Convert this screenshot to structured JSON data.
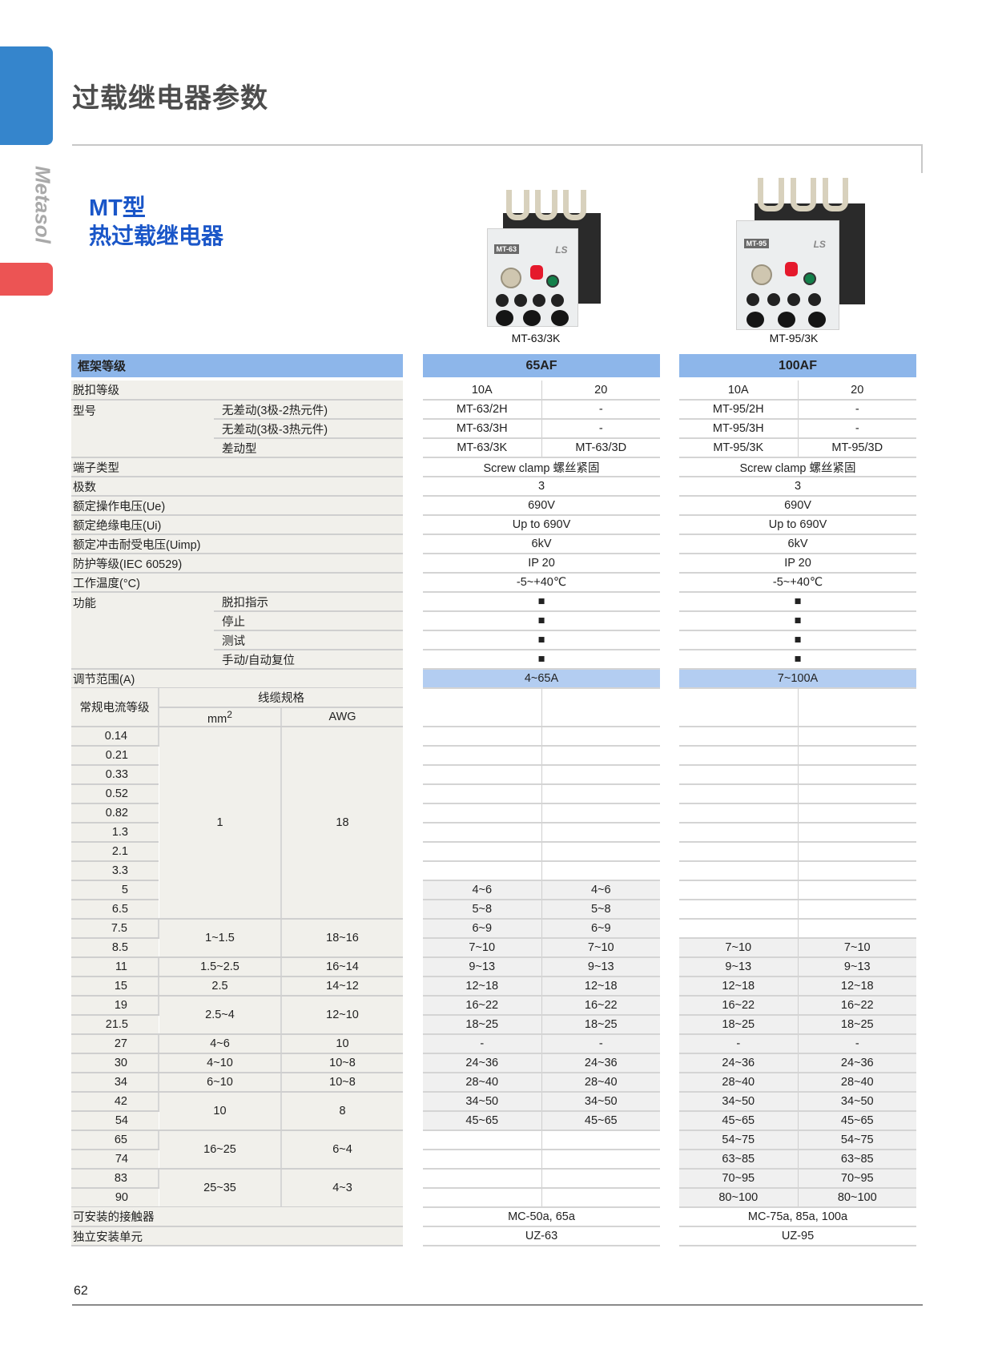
{
  "page": {
    "side_label": "Metasol",
    "title": "过载继电器参数",
    "product_type": "MT型",
    "product_name": "热过载继电器",
    "page_number": "62"
  },
  "colors": {
    "tab_blue": "#3585cc",
    "tab_red": "#ec5454",
    "header_blue": "#8db6ea",
    "range_blue": "#b3cdf1",
    "heading_blue": "#1a56c8"
  },
  "products": [
    {
      "badge": "MT-63",
      "logo": "LS",
      "caption": "MT-63/3K"
    },
    {
      "badge": "MT-95",
      "logo": "LS",
      "caption": "MT-95/3K"
    }
  ],
  "spec": {
    "header": "框架等级",
    "trip_class": "脱扣等级",
    "model": "型号",
    "model_subs": [
      "无差动(3极-2热元件)",
      "无差动(3极-3热元件)",
      "差动型"
    ],
    "terminal": "端子类型",
    "poles": "极数",
    "ue": "额定操作电压(Ue)",
    "ui": "额定绝缘电压(Ui)",
    "uimp": "额定冲击耐受电压(Uimp)",
    "ip": "防护等级(IEC 60529)",
    "temp": "工作温度(°C)",
    "function": "功能",
    "function_subs": [
      "脱扣指示",
      "停止",
      "测试",
      "手动/自动复位"
    ],
    "range": "调节范围(A)"
  },
  "cable": {
    "current_header": "常规电流等级",
    "cable_header": "线缆规格",
    "mm2_label": "mm",
    "mm2_sup": "2",
    "awg_label": "AWG",
    "currents": [
      "0.14",
      "0.21",
      "0.33",
      "0.52",
      "0.82",
      "1.3",
      "2.1",
      "3.3",
      "5",
      "6.5",
      "7.5",
      "8.5",
      "11",
      "15",
      "19",
      "21.5",
      "27",
      "30",
      "34",
      "42",
      "54",
      "65",
      "74",
      "83",
      "90"
    ],
    "mm2": [
      {
        "value": "1",
        "span": 10
      },
      {
        "value": "1~1.5",
        "span": 2
      },
      {
        "value": "1.5~2.5",
        "span": 1
      },
      {
        "value": "2.5",
        "span": 1
      },
      {
        "value": "2.5~4",
        "span": 2
      },
      {
        "value": "4~6",
        "span": 1
      },
      {
        "value": "4~10",
        "span": 1
      },
      {
        "value": "6~10",
        "span": 1
      },
      {
        "value": "10",
        "span": 2
      },
      {
        "value": "16~25",
        "span": 2
      },
      {
        "value": "25~35",
        "span": 2
      }
    ],
    "awg": [
      {
        "value": "18",
        "span": 10
      },
      {
        "value": "18~16",
        "span": 2
      },
      {
        "value": "16~14",
        "span": 1
      },
      {
        "value": "14~12",
        "span": 1
      },
      {
        "value": "12~10",
        "span": 2
      },
      {
        "value": "10",
        "span": 1
      },
      {
        "value": "10~8",
        "span": 1
      },
      {
        "value": "10~8",
        "span": 1
      },
      {
        "value": "8",
        "span": 2
      },
      {
        "value": "6~4",
        "span": 2
      },
      {
        "value": "4~3",
        "span": 2
      }
    ]
  },
  "footer_rows": {
    "contactor": "可安装的接触器",
    "unit": "独立安装单元"
  },
  "frames": [
    {
      "name": "65AF",
      "trip": [
        "10A",
        "20"
      ],
      "models": [
        [
          "MT-63/2H",
          "-"
        ],
        [
          "MT-63/3H",
          "-"
        ],
        [
          "MT-63/3K",
          "MT-63/3D"
        ]
      ],
      "terminal": "Screw clamp 螺丝紧固",
      "poles": "3",
      "ue": "690V",
      "ui": "Up to 690V",
      "uimp": "6kV",
      "ip": "IP 20",
      "temp": "-5~+40℃",
      "functions": [
        "■",
        "■",
        "■",
        "■"
      ],
      "range": "4~65A",
      "ranges": [
        [
          "",
          ""
        ],
        [
          "",
          ""
        ],
        [
          "",
          ""
        ],
        [
          "",
          ""
        ],
        [
          "",
          ""
        ],
        [
          "",
          ""
        ],
        [
          "",
          ""
        ],
        [
          "",
          ""
        ],
        [
          "4~6",
          "4~6"
        ],
        [
          "5~8",
          "5~8"
        ],
        [
          "6~9",
          "6~9"
        ],
        [
          "7~10",
          "7~10"
        ],
        [
          "9~13",
          "9~13"
        ],
        [
          "12~18",
          "12~18"
        ],
        [
          "16~22",
          "16~22"
        ],
        [
          "18~25",
          "18~25"
        ],
        [
          "-",
          "-"
        ],
        [
          "24~36",
          "24~36"
        ],
        [
          "28~40",
          "28~40"
        ],
        [
          "34~50",
          "34~50"
        ],
        [
          "45~65",
          "45~65"
        ],
        [
          "",
          ""
        ],
        [
          "",
          ""
        ],
        [
          "",
          ""
        ],
        [
          "",
          ""
        ]
      ],
      "contactor": "MC-50a, 65a",
      "unit": "UZ-63"
    },
    {
      "name": "100AF",
      "trip": [
        "10A",
        "20"
      ],
      "models": [
        [
          "MT-95/2H",
          "-"
        ],
        [
          "MT-95/3H",
          "-"
        ],
        [
          "MT-95/3K",
          "MT-95/3D"
        ]
      ],
      "terminal": "Screw clamp 螺丝紧固",
      "poles": "3",
      "ue": "690V",
      "ui": "Up to 690V",
      "uimp": "6kV",
      "ip": "IP 20",
      "temp": "-5~+40℃",
      "functions": [
        "■",
        "■",
        "■",
        "■"
      ],
      "range": "7~100A",
      "ranges": [
        [
          "",
          ""
        ],
        [
          "",
          ""
        ],
        [
          "",
          ""
        ],
        [
          "",
          ""
        ],
        [
          "",
          ""
        ],
        [
          "",
          ""
        ],
        [
          "",
          ""
        ],
        [
          "",
          ""
        ],
        [
          "",
          ""
        ],
        [
          "",
          ""
        ],
        [
          "",
          ""
        ],
        [
          "7~10",
          "7~10"
        ],
        [
          "9~13",
          "9~13"
        ],
        [
          "12~18",
          "12~18"
        ],
        [
          "16~22",
          "16~22"
        ],
        [
          "18~25",
          "18~25"
        ],
        [
          "-",
          "-"
        ],
        [
          "24~36",
          "24~36"
        ],
        [
          "28~40",
          "28~40"
        ],
        [
          "34~50",
          "34~50"
        ],
        [
          "45~65",
          "45~65"
        ],
        [
          "54~75",
          "54~75"
        ],
        [
          "63~85",
          "63~85"
        ],
        [
          "70~95",
          "70~95"
        ],
        [
          "80~100",
          "80~100"
        ]
      ],
      "contactor": "MC-75a, 85a, 100a",
      "unit": "UZ-95"
    }
  ]
}
